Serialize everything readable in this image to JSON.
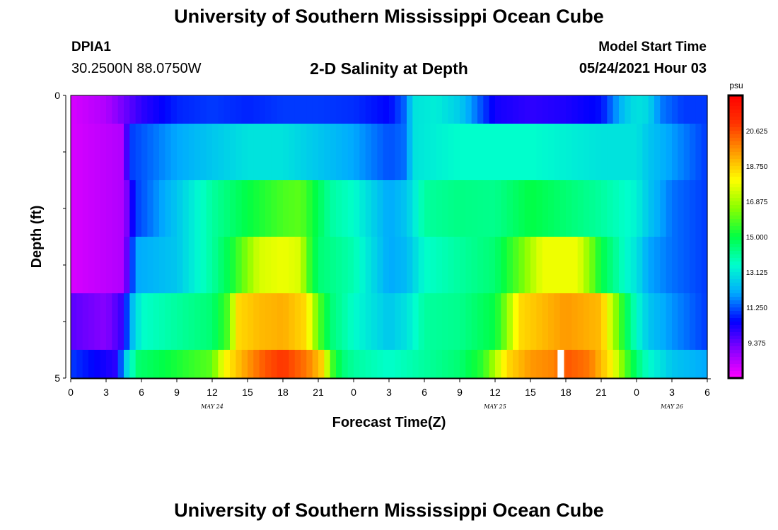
{
  "header": {
    "title": "University of Southern Mississippi Ocean Cube",
    "station": "DPIA1",
    "coordinates": "30.2500N  88.0750W",
    "plot_title": "2-D Salinity at Depth",
    "model_start_label": "Model Start Time",
    "model_start_value": "05/24/2021 Hour 03"
  },
  "footer": {
    "title": "University of Southern Mississippi Ocean Cube"
  },
  "chart_data": {
    "type": "heatmap",
    "title": "2-D Salinity at Depth",
    "xlabel": "Forecast Time(Z)",
    "ylabel": "Depth (ft)",
    "x_tick_labels": [
      "0",
      "3",
      "6",
      "9",
      "12",
      "15",
      "18",
      "21",
      "0",
      "3",
      "6",
      "9",
      "12",
      "15",
      "18",
      "21",
      "0",
      "3",
      "6"
    ],
    "x_tick_hours": [
      0,
      3,
      6,
      9,
      12,
      15,
      18,
      21,
      24,
      27,
      30,
      33,
      36,
      39,
      42,
      45,
      48,
      51,
      54
    ],
    "x_range_hours": [
      0,
      54
    ],
    "date_labels": [
      {
        "label": "MAY 24",
        "hour": 12
      },
      {
        "label": "MAY 25",
        "hour": 36
      },
      {
        "label": "MAY 26",
        "hour": 51
      }
    ],
    "y_tick_labels": [
      "0",
      "5"
    ],
    "y_range": [
      0,
      5
    ],
    "y_ticks": [
      0,
      1,
      2,
      3,
      4,
      5
    ],
    "units": "psu",
    "colorbar_labels": [
      "20.625",
      "18.750",
      "16.875",
      "15.000",
      "13.125",
      "11.250",
      "9.375"
    ],
    "colorbar_values": [
      20.625,
      18.75,
      16.875,
      15.0,
      13.125,
      11.25,
      9.375
    ],
    "color_range": [
      7.5,
      22.5
    ],
    "colors": {
      "scale": [
        "#ff00ff",
        "#8800ff",
        "#0000ff",
        "#00aaff",
        "#00ffcc",
        "#00ff44",
        "#88ff00",
        "#ffff00",
        "#ff9900",
        "#ff3300",
        "#ff0000"
      ]
    },
    "rows": [
      {
        "depth": [
          0,
          0.5
        ],
        "keyframes": [
          [
            0,
            8.0
          ],
          [
            3,
            8.5
          ],
          [
            6,
            10.0
          ],
          [
            9,
            10.8
          ],
          [
            12,
            11.0
          ],
          [
            15,
            10.8
          ],
          [
            18,
            11.0
          ],
          [
            21,
            11.0
          ],
          [
            24,
            10.9
          ],
          [
            27,
            10.5
          ],
          [
            28.5,
            11.5
          ],
          [
            29,
            13.0
          ],
          [
            31,
            13.2
          ],
          [
            33,
            12.6
          ],
          [
            36,
            10.3
          ],
          [
            39,
            10.0
          ],
          [
            42,
            10.2
          ],
          [
            45,
            10.6
          ],
          [
            47,
            12.5
          ],
          [
            48,
            13.0
          ],
          [
            49,
            12.8
          ],
          [
            50,
            11.6
          ],
          [
            52,
            11.0
          ],
          [
            54,
            11.0
          ]
        ]
      },
      {
        "depth": [
          0.5,
          1.5
        ],
        "keyframes": [
          [
            0,
            8.0
          ],
          [
            4.5,
            8.5
          ],
          [
            5,
            11.0
          ],
          [
            9,
            12.0
          ],
          [
            15,
            13.0
          ],
          [
            18,
            13.0
          ],
          [
            21,
            12.5
          ],
          [
            24,
            12.0
          ],
          [
            27,
            11.2
          ],
          [
            28.5,
            11.5
          ],
          [
            29,
            13.0
          ],
          [
            33,
            13.5
          ],
          [
            39,
            13.5
          ],
          [
            45,
            13.0
          ],
          [
            48,
            13.0
          ],
          [
            49,
            12.5
          ],
          [
            54,
            11.0
          ]
        ]
      },
      {
        "depth": [
          1.5,
          2.5
        ],
        "keyframes": [
          [
            0,
            8.0
          ],
          [
            4.5,
            8.5
          ],
          [
            5.5,
            11.0
          ],
          [
            9,
            12.5
          ],
          [
            12,
            14.0
          ],
          [
            15,
            15.0
          ],
          [
            18,
            15.8
          ],
          [
            19.5,
            16.0
          ],
          [
            22,
            14.0
          ],
          [
            24,
            13.5
          ],
          [
            27,
            12.0
          ],
          [
            28.5,
            12.5
          ],
          [
            30,
            14.0
          ],
          [
            33,
            14.3
          ],
          [
            36,
            14.2
          ],
          [
            39,
            15.0
          ],
          [
            42,
            14.5
          ],
          [
            45,
            14.0
          ],
          [
            48,
            13.3
          ],
          [
            49,
            12.5
          ],
          [
            51,
            11.5
          ],
          [
            54,
            11.0
          ]
        ]
      },
      {
        "depth": [
          2.5,
          3.5
        ],
        "keyframes": [
          [
            0,
            8.0
          ],
          [
            4.5,
            8.5
          ],
          [
            5.5,
            12.0
          ],
          [
            9,
            12.5
          ],
          [
            12,
            14.0
          ],
          [
            13.5,
            15.0
          ],
          [
            15,
            16.5
          ],
          [
            16,
            17.5
          ],
          [
            18,
            17.8
          ],
          [
            19.5,
            17.5
          ],
          [
            20,
            16.0
          ],
          [
            21,
            14.5
          ],
          [
            24,
            13.8
          ],
          [
            27,
            12.0
          ],
          [
            28.5,
            12.3
          ],
          [
            30,
            13.5
          ],
          [
            33,
            14.0
          ],
          [
            36,
            14.5
          ],
          [
            38,
            16.0
          ],
          [
            40,
            17.8
          ],
          [
            43,
            17.8
          ],
          [
            44,
            16.5
          ],
          [
            45,
            15.0
          ],
          [
            47,
            13.5
          ],
          [
            48,
            13.0
          ],
          [
            49,
            12.0
          ],
          [
            51,
            11.5
          ],
          [
            54,
            11.0
          ]
        ]
      },
      {
        "depth": [
          3.5,
          4.5
        ],
        "keyframes": [
          [
            0,
            9.5
          ],
          [
            3,
            9.0
          ],
          [
            4.5,
            10.0
          ],
          [
            5,
            12.0
          ],
          [
            6,
            13.5
          ],
          [
            9,
            14.0
          ],
          [
            12,
            14.5
          ],
          [
            13.5,
            16.0
          ],
          [
            14,
            18.5
          ],
          [
            16,
            19.0
          ],
          [
            18,
            19.2
          ],
          [
            20,
            18.5
          ],
          [
            21,
            16.0
          ],
          [
            22,
            14.5
          ],
          [
            24,
            13.5
          ],
          [
            27,
            12.5
          ],
          [
            28.5,
            13.0
          ],
          [
            30,
            14.0
          ],
          [
            33,
            14.2
          ],
          [
            36,
            15.0
          ],
          [
            37,
            16.5
          ],
          [
            38,
            18.5
          ],
          [
            42,
            19.5
          ],
          [
            45,
            19.0
          ],
          [
            46,
            17.0
          ],
          [
            47,
            15.0
          ],
          [
            48,
            13.5
          ],
          [
            49,
            12.5
          ],
          [
            51,
            11.8
          ],
          [
            54,
            11.0
          ]
        ]
      },
      {
        "depth": [
          4.5,
          5.0
        ],
        "keyframes": [
          [
            0,
            11.0
          ],
          [
            2,
            10.5
          ],
          [
            4,
            10.0
          ],
          [
            4.5,
            12.5
          ],
          [
            5,
            13.0
          ],
          [
            5.5,
            14.5
          ],
          [
            8,
            15.0
          ],
          [
            10,
            15.5
          ],
          [
            12,
            16.0
          ],
          [
            13,
            18.0
          ],
          [
            15,
            19.5
          ],
          [
            16.5,
            20.5
          ],
          [
            18,
            21.0
          ],
          [
            20,
            20.0
          ],
          [
            21.5,
            18.5
          ],
          [
            22,
            16.0
          ],
          [
            23,
            14.5
          ],
          [
            24,
            14.0
          ],
          [
            27,
            13.5
          ],
          [
            30,
            14.0
          ],
          [
            33,
            14.5
          ],
          [
            35,
            15.5
          ],
          [
            36,
            17.0
          ],
          [
            37,
            18.5
          ],
          [
            39,
            19.5
          ],
          [
            41,
            19.8
          ],
          [
            42,
            20.5
          ],
          [
            44,
            20.0
          ],
          [
            46,
            18.0
          ],
          [
            47,
            16.0
          ],
          [
            48,
            14.5
          ],
          [
            49,
            13.5
          ],
          [
            51,
            12.5
          ],
          [
            54,
            12.0
          ]
        ]
      }
    ],
    "missing_cells": [
      {
        "hour": 41.3,
        "depth": [
          4.5,
          5.0
        ]
      }
    ]
  }
}
